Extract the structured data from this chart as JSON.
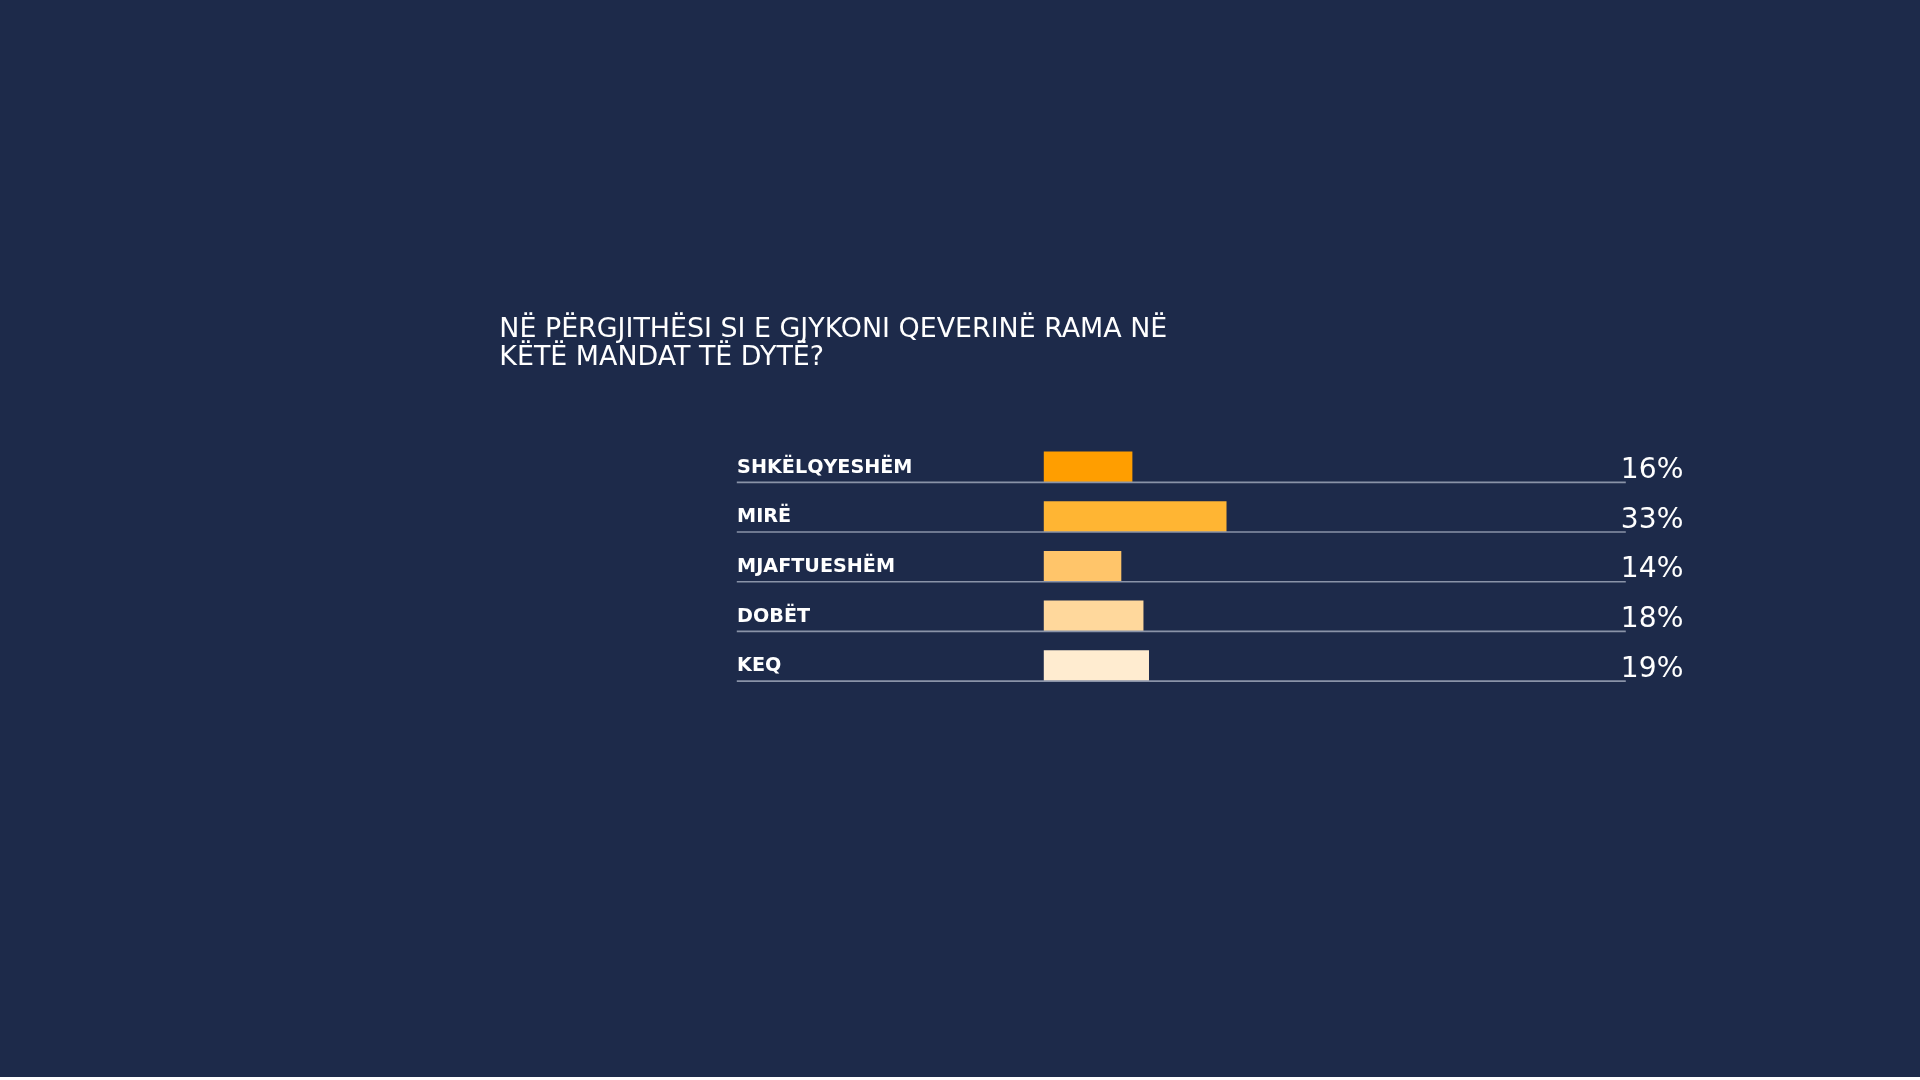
{
  "chart_data": {
    "type": "bar",
    "orientation": "horizontal",
    "title": "NË PËRGJITHËSI SI E GJYKONI QEVERINË RAMA NË KËTË MANDAT TË DYTË?",
    "categories": [
      "SHKËLQYESHËM",
      "MIRË",
      "MJAFTUESHËM",
      "DOBËT",
      "KEQ"
    ],
    "values": [
      16,
      33,
      14,
      18,
      19
    ],
    "colors": [
      "#ff9e00",
      "#ffb533",
      "#ffc56a",
      "#ffd89c",
      "#ffecd0"
    ],
    "value_labels": [
      "16%",
      "33%",
      "14%",
      "18%",
      "19%"
    ],
    "grid": "y"
  }
}
